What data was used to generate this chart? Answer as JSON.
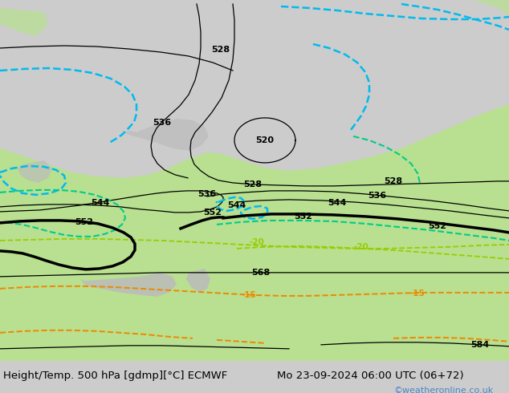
{
  "title_left": "Height/Temp. 500 hPa [gdmp][°C] ECMWF",
  "title_right": "Mo 23-09-2024 06:00 UTC (06+72)",
  "copyright": "©weatheronline.co.uk",
  "bg_color": "#cccccc",
  "green_color": "#b8e090",
  "green_dark": "#90cc60",
  "gray_land": "#bbbbbb",
  "black_thin": 0.9,
  "black_thick": 2.5,
  "cyan_lw": 1.8,
  "teal_lw": 1.5,
  "yg_lw": 1.3,
  "orange_lw": 1.4,
  "cyan_col": "#00bbee",
  "teal_col": "#00cc88",
  "yg_col": "#99cc00",
  "orange_col": "#ee8800",
  "label_fs": 8.0,
  "title_fs": 9.5,
  "copy_col": "#4488cc"
}
